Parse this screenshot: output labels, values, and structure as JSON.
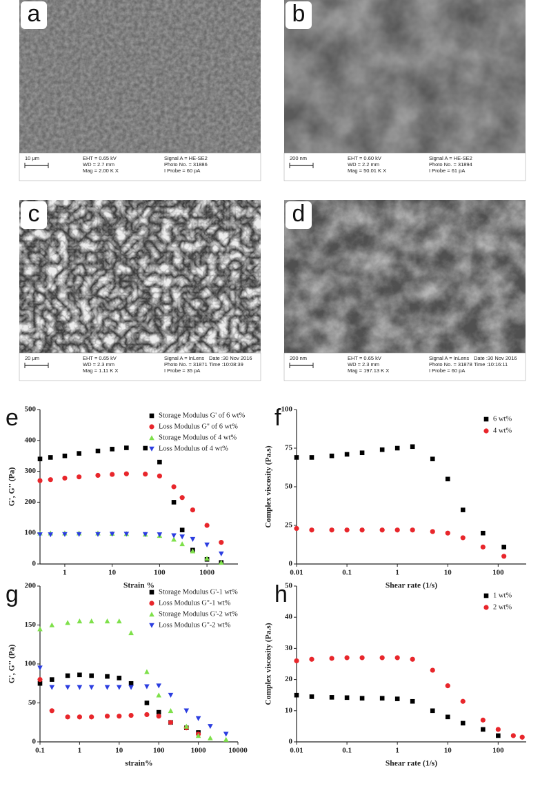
{
  "panels": [
    {
      "label": "a",
      "scale": "10 μm",
      "column1": [
        "EHT = 0.65 kV",
        "WD = 2.7 mm",
        "Mag = 2.00 K X"
      ],
      "column2": [
        "Signal A = HE-SE2",
        "Photo No. = 31886",
        "I Probe = 60 pA"
      ]
    },
    {
      "label": "b",
      "scale": "200 nm",
      "column1": [
        "EHT = 0.60 kV",
        "WD = 2.2 mm",
        "Mag = 50.01 K X"
      ],
      "column2": [
        "Signal A = HE-SE2",
        "Photo No. = 31894",
        "I Probe = 61 pA"
      ]
    },
    {
      "label": "c",
      "scale": "20 μm",
      "column1": [
        "EHT = 0.65 kV",
        "WD = 2.3 mm",
        "Mag = 1.11 K X"
      ],
      "column2": [
        "Signal A = InLens",
        "Photo No. = 31871",
        "I Probe = 35 pA"
      ],
      "column3": [
        "Date :30 Nov 2016",
        "Time :10:08:39"
      ]
    },
    {
      "label": "d",
      "scale": "200 nm",
      "column1": [
        "EHT = 0.65 kV",
        "WD = 2.3 mm",
        "Mag = 197.13 K X"
      ],
      "column2": [
        "Signal A = InLens",
        "Photo No. = 31878",
        "I Probe = 60 pA"
      ],
      "column3": [
        "Date :30 Nov 2016",
        "Time :10:16:11"
      ]
    }
  ],
  "chart_data": [
    {
      "type": "scatter",
      "label": "e",
      "x_label": "Strain %",
      "y_label": "G', G'' (Pa)",
      "log_x": true,
      "legend": "upper right",
      "x": [
        0.3,
        0.5,
        1,
        2,
        5,
        10,
        20,
        50,
        100,
        200,
        300,
        500,
        1000,
        2000
      ],
      "xlim": [
        0.3,
        4500
      ],
      "xticks": [
        1,
        10,
        100,
        1000
      ],
      "ylim": [
        0,
        500
      ],
      "yticks": [
        0,
        100,
        200,
        300,
        400,
        500
      ],
      "series": [
        {
          "name": "Storage Modulus G' of 6 wt%",
          "color": "#000000",
          "marker": "square",
          "values": [
            340,
            345,
            350,
            358,
            366,
            372,
            376,
            375,
            330,
            200,
            110,
            45,
            15,
            5
          ]
        },
        {
          "name": "Loss Modulus G'' of 6 wt%",
          "color": "#e8262b",
          "marker": "circle",
          "values": [
            270,
            273,
            278,
            282,
            287,
            290,
            292,
            291,
            285,
            250,
            215,
            175,
            125,
            70
          ]
        },
        {
          "name": "Storage Modulus of 4 wt%",
          "color": "#7ee04a",
          "marker": "triangle-up",
          "values": [
            100,
            100,
            100,
            100,
            100,
            99,
            98,
            96,
            92,
            80,
            65,
            42,
            18,
            5
          ]
        },
        {
          "name": "Loss Modulus of 4 wt%",
          "color": "#2b3de0",
          "marker": "triangle-down",
          "values": [
            95,
            95,
            96,
            96,
            96,
            97,
            97,
            96,
            95,
            92,
            88,
            80,
            62,
            33
          ]
        }
      ]
    },
    {
      "type": "scatter",
      "label": "f",
      "x_label": "Shear rate (1/s)",
      "y_label": "Complex viscosity (Pa.s)",
      "log_x": true,
      "legend": "upper right",
      "x": [
        0.01,
        0.02,
        0.05,
        0.1,
        0.2,
        0.5,
        1,
        2,
        5,
        10,
        20,
        50,
        130
      ],
      "xlim": [
        0.01,
        360
      ],
      "xticks": [
        0.01,
        0.1,
        1,
        10,
        100
      ],
      "ylim": [
        0,
        100
      ],
      "yticks": [
        0,
        25,
        50,
        75,
        100
      ],
      "series": [
        {
          "name": "6 wt%",
          "color": "#000000",
          "marker": "square",
          "values": [
            69,
            69,
            70,
            71,
            72,
            74,
            75,
            76,
            68,
            55,
            35,
            20,
            11
          ]
        },
        {
          "name": "4 wt%",
          "color": "#e8262b",
          "marker": "circle",
          "values": [
            23,
            22,
            22,
            22,
            22,
            22,
            22,
            22,
            21,
            20,
            17,
            11,
            5
          ]
        }
      ]
    },
    {
      "type": "scatter",
      "label": "g",
      "x_label": "strain%",
      "y_label": "G', G'' (Pa)",
      "log_x": true,
      "legend": "upper right",
      "x": [
        0.1,
        0.2,
        0.5,
        1,
        2,
        5,
        10,
        20,
        50,
        100,
        200,
        500,
        1000,
        2000,
        5000
      ],
      "xlim": [
        0.1,
        10000
      ],
      "xticks": [
        0.1,
        1,
        10,
        100,
        1000,
        10000
      ],
      "ylim": [
        0,
        200
      ],
      "yticks": [
        0,
        50,
        100,
        150,
        200
      ],
      "series": [
        {
          "name": "Storage Modulus G'-1 wt%",
          "color": "#000000",
          "marker": "square",
          "values": [
            75,
            80,
            85,
            86,
            85,
            84,
            82,
            75,
            50,
            38,
            25,
            18,
            12,
            null,
            null
          ]
        },
        {
          "name": "Loss Modulus G''-1 wt%",
          "color": "#e8262b",
          "marker": "circle",
          "values": [
            80,
            40,
            32,
            32,
            32,
            33,
            33,
            34,
            35,
            33,
            25,
            18,
            10,
            null,
            null
          ]
        },
        {
          "name": "Storage Modulus G'-2 wt%",
          "color": "#7ee04a",
          "marker": "triangle-up",
          "values": [
            145,
            150,
            153,
            155,
            155,
            155,
            155,
            140,
            90,
            60,
            40,
            20,
            8,
            5,
            3
          ]
        },
        {
          "name": "Loss Modulus G''-2 wt%",
          "color": "#2b3de0",
          "marker": "triangle-down",
          "values": [
            95,
            70,
            70,
            70,
            70,
            70,
            70,
            70,
            71,
            72,
            60,
            40,
            30,
            20,
            10
          ]
        }
      ]
    },
    {
      "type": "scatter",
      "label": "h",
      "x_label": "Shear rate (1/s)",
      "y_label": "Complex viscosity (Pa.s)",
      "log_x": true,
      "legend": "upper right",
      "x": [
        0.01,
        0.02,
        0.05,
        0.1,
        0.2,
        0.5,
        1,
        2,
        5,
        10,
        20,
        50,
        100,
        200,
        300
      ],
      "xlim": [
        0.01,
        360
      ],
      "xticks": [
        0.01,
        0.1,
        1,
        10,
        100
      ],
      "ylim": [
        0,
        50
      ],
      "yticks": [
        0,
        10,
        20,
        30,
        40,
        50
      ],
      "series": [
        {
          "name": "1 wt%",
          "color": "#000000",
          "marker": "square",
          "values": [
            15,
            14.5,
            14.3,
            14.2,
            14,
            14,
            13.8,
            13,
            10,
            8,
            6,
            4,
            2,
            null,
            null
          ]
        },
        {
          "name": "2 wt%",
          "color": "#e8262b",
          "marker": "circle",
          "values": [
            26,
            26.5,
            26.8,
            27,
            27,
            27,
            27,
            26.5,
            23,
            18,
            13,
            7,
            4,
            2,
            1.5
          ]
        }
      ]
    }
  ]
}
